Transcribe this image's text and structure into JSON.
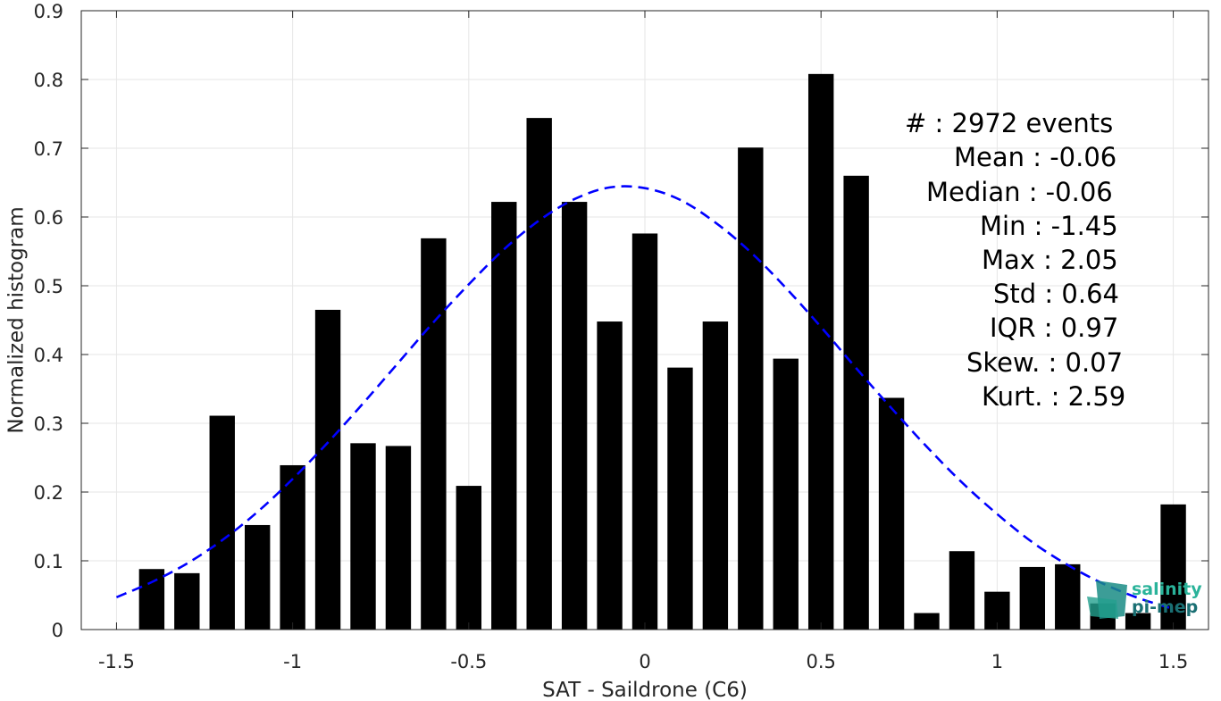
{
  "chart_data": {
    "type": "bar",
    "xlabel": "SAT - Saildrone (C6)",
    "ylabel": "Normalized histogram",
    "xlim": [
      -1.6,
      1.6
    ],
    "ylim": [
      0,
      0.9
    ],
    "xticks": [
      -1.5,
      -1,
      -0.5,
      0,
      0.5,
      1,
      1.5
    ],
    "xtick_labels": [
      "-1.5",
      "-1",
      "-0.5",
      "0",
      "0.5",
      "1",
      "1.5"
    ],
    "yticks": [
      0,
      0.1,
      0.2,
      0.3,
      0.4,
      0.5,
      0.6,
      0.7,
      0.8,
      0.9
    ],
    "ytick_labels": [
      "0",
      "0.1",
      "0.2",
      "0.3",
      "0.4",
      "0.5",
      "0.6",
      "0.7",
      "0.8",
      "0.9"
    ],
    "grid": true,
    "bar_color": "#000000",
    "bars": {
      "x": [
        -1.4,
        -1.3,
        -1.2,
        -1.1,
        -1.0,
        -0.9,
        -0.8,
        -0.7,
        -0.6,
        -0.5,
        -0.4,
        -0.3,
        -0.2,
        -0.1,
        0.0,
        0.1,
        0.2,
        0.3,
        0.4,
        0.5,
        0.6,
        0.7,
        0.8,
        0.9,
        1.0,
        1.1,
        1.2,
        1.3,
        1.4,
        1.5
      ],
      "values": [
        0.088,
        0.082,
        0.311,
        0.152,
        0.239,
        0.465,
        0.271,
        0.267,
        0.569,
        0.209,
        0.622,
        0.744,
        0.622,
        0.448,
        0.576,
        0.381,
        0.448,
        0.701,
        0.394,
        0.808,
        0.66,
        0.337,
        0.024,
        0.114,
        0.055,
        0.091,
        0.095,
        0.038,
        0.024,
        0.182
      ]
    },
    "fit": {
      "type": "gaussian",
      "color": "#0000ff",
      "style": "dashed",
      "x": [
        -1.5,
        -1.4,
        -1.3,
        -1.2,
        -1.1,
        -1.0,
        -0.9,
        -0.8,
        -0.7,
        -0.6,
        -0.5,
        -0.4,
        -0.3,
        -0.2,
        -0.1,
        0.0,
        0.1,
        0.2,
        0.3,
        0.4,
        0.5,
        0.6,
        0.7,
        0.8,
        0.9,
        1.0,
        1.1,
        1.2,
        1.3,
        1.4,
        1.5
      ],
      "y": [
        0.047,
        0.069,
        0.096,
        0.13,
        0.171,
        0.219,
        0.272,
        0.329,
        0.388,
        0.447,
        0.502,
        0.553,
        0.595,
        0.626,
        0.643,
        0.642,
        0.625,
        0.592,
        0.549,
        0.497,
        0.44,
        0.38,
        0.322,
        0.266,
        0.214,
        0.168,
        0.127,
        0.094,
        0.067,
        0.046,
        0.03
      ]
    },
    "stats": [
      {
        "label": "#  : 2972 events"
      },
      {
        "label": "Mean : -0.06"
      },
      {
        "label": "Median : -0.06"
      },
      {
        "label": "Min : -1.45"
      },
      {
        "label": "Max : 2.05"
      },
      {
        "label": "Std : 0.64"
      },
      {
        "label": "IQR : 0.97"
      },
      {
        "label": "Skew. : 0.07"
      },
      {
        "label": "Kurt. : 2.59"
      }
    ]
  },
  "logo": {
    "line1": "salinity",
    "line2": "pi-mep",
    "color1": "#2ab39a",
    "color2": "#1a6f73"
  }
}
